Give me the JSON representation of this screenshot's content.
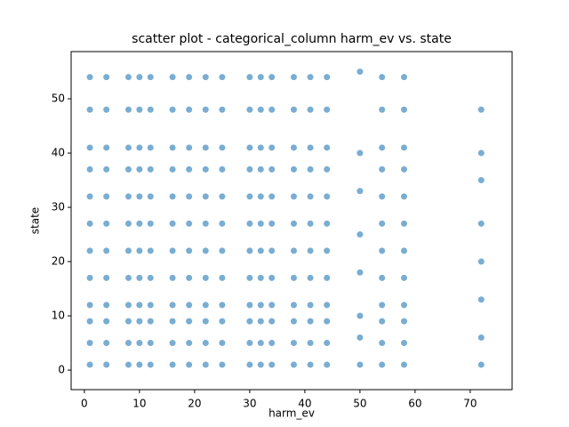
{
  "chart_data": {
    "type": "scatter",
    "title": "scatter plot - categorical_column harm_ev vs. state",
    "xlabel": "harm_ev",
    "ylabel": "state",
    "color": "#1f77b4",
    "xlim": [
      -2.4,
      77.6
    ],
    "ylim": [
      -3.6,
      58.7
    ],
    "xticks": [
      0,
      10,
      20,
      30,
      40,
      50,
      60,
      70
    ],
    "yticks": [
      0,
      10,
      20,
      30,
      40,
      50
    ],
    "x": [
      1,
      1,
      1,
      1,
      1,
      1,
      1,
      1,
      1,
      1,
      1,
      1,
      4,
      4,
      4,
      4,
      4,
      4,
      4,
      4,
      4,
      4,
      4,
      4,
      8,
      8,
      8,
      8,
      8,
      8,
      8,
      8,
      8,
      8,
      8,
      8,
      10,
      10,
      10,
      10,
      10,
      10,
      10,
      10,
      10,
      10,
      10,
      10,
      12,
      12,
      12,
      12,
      12,
      12,
      12,
      12,
      12,
      12,
      12,
      12,
      16,
      16,
      16,
      16,
      16,
      16,
      16,
      16,
      16,
      16,
      16,
      16,
      19,
      19,
      19,
      19,
      19,
      19,
      19,
      19,
      19,
      19,
      19,
      19,
      22,
      22,
      22,
      22,
      22,
      22,
      22,
      22,
      22,
      22,
      22,
      22,
      25,
      25,
      25,
      25,
      25,
      25,
      25,
      25,
      25,
      25,
      25,
      25,
      30,
      30,
      30,
      30,
      30,
      30,
      30,
      30,
      30,
      30,
      30,
      30,
      32,
      32,
      32,
      32,
      32,
      32,
      32,
      32,
      32,
      32,
      32,
      32,
      34,
      34,
      34,
      34,
      34,
      34,
      34,
      34,
      34,
      34,
      34,
      34,
      38,
      38,
      38,
      38,
      38,
      38,
      38,
      38,
      38,
      38,
      38,
      38,
      41,
      41,
      41,
      41,
      41,
      41,
      41,
      41,
      41,
      41,
      41,
      41,
      44,
      44,
      44,
      44,
      44,
      44,
      44,
      44,
      44,
      44,
      44,
      44,
      54,
      54,
      54,
      54,
      54,
      54,
      54,
      54,
      54,
      54,
      54,
      54,
      58,
      58,
      58,
      58,
      58,
      58,
      58,
      58,
      58,
      58,
      58,
      58,
      50,
      50,
      50,
      50,
      50,
      50,
      50,
      50,
      72,
      72,
      72,
      72,
      72,
      72,
      72,
      72
    ],
    "y": [
      1,
      5,
      9,
      12,
      17,
      22,
      27,
      32,
      37,
      41,
      48,
      54,
      1,
      5,
      9,
      12,
      17,
      22,
      27,
      32,
      37,
      41,
      48,
      54,
      1,
      5,
      9,
      12,
      17,
      22,
      27,
      32,
      37,
      41,
      48,
      54,
      1,
      5,
      9,
      12,
      17,
      22,
      27,
      32,
      37,
      41,
      48,
      54,
      1,
      5,
      9,
      12,
      17,
      22,
      27,
      32,
      37,
      41,
      48,
      54,
      1,
      5,
      9,
      12,
      17,
      22,
      27,
      32,
      37,
      41,
      48,
      54,
      1,
      5,
      9,
      12,
      17,
      22,
      27,
      32,
      37,
      41,
      48,
      54,
      1,
      5,
      9,
      12,
      17,
      22,
      27,
      32,
      37,
      41,
      48,
      54,
      1,
      5,
      9,
      12,
      17,
      22,
      27,
      32,
      37,
      41,
      48,
      54,
      1,
      5,
      9,
      12,
      17,
      22,
      27,
      32,
      37,
      41,
      48,
      54,
      1,
      5,
      9,
      12,
      17,
      22,
      27,
      32,
      37,
      41,
      48,
      54,
      1,
      5,
      9,
      12,
      17,
      22,
      27,
      32,
      37,
      41,
      48,
      54,
      1,
      5,
      9,
      12,
      17,
      22,
      27,
      32,
      37,
      41,
      48,
      54,
      1,
      5,
      9,
      12,
      17,
      22,
      27,
      32,
      37,
      41,
      48,
      54,
      1,
      5,
      9,
      12,
      17,
      22,
      27,
      32,
      37,
      41,
      48,
      54,
      1,
      5,
      9,
      12,
      17,
      22,
      27,
      32,
      37,
      41,
      48,
      54,
      1,
      5,
      9,
      12,
      17,
      22,
      27,
      32,
      37,
      41,
      48,
      54,
      1,
      6,
      10,
      18,
      25,
      33,
      40,
      55,
      1,
      6,
      13,
      20,
      27,
      35,
      40,
      48
    ]
  }
}
